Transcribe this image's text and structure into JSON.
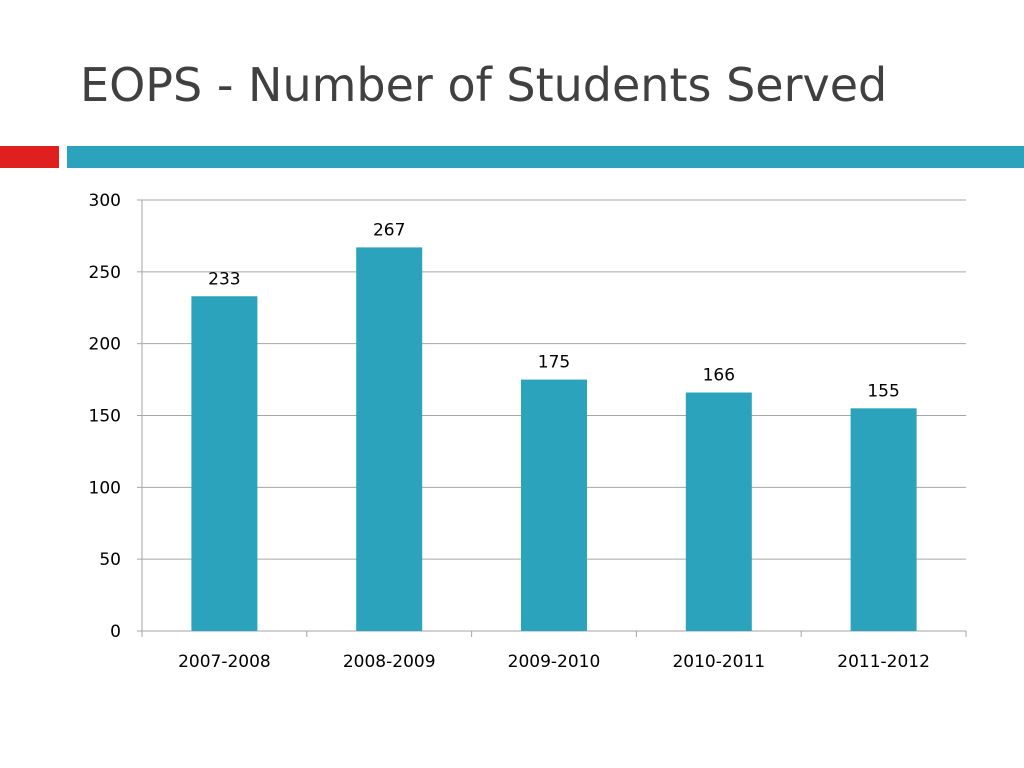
{
  "slide": {
    "title": "EOPS - Number of Students Served"
  },
  "colors": {
    "accent_red": "#e0201f",
    "accent_teal": "#2ba3bc",
    "bar": "#2ba3bc",
    "title_text": "#404040",
    "gridline": "#a6a6a6"
  },
  "chart_data": {
    "type": "bar",
    "title": "",
    "xlabel": "",
    "ylabel": "",
    "categories": [
      "2007-2008",
      "2008-2009",
      "2009-2010",
      "2010-2011",
      "2011-2012"
    ],
    "values": [
      233,
      267,
      175,
      166,
      155
    ],
    "data_labels": [
      "233",
      "267",
      "175",
      "166",
      "155"
    ],
    "ylim": [
      0,
      300
    ],
    "yticks": [
      0,
      50,
      100,
      150,
      200,
      250,
      300
    ],
    "ytick_labels": [
      "0",
      "50",
      "100",
      "150",
      "200",
      "250",
      "300"
    ],
    "grid": true,
    "legend": "none"
  }
}
